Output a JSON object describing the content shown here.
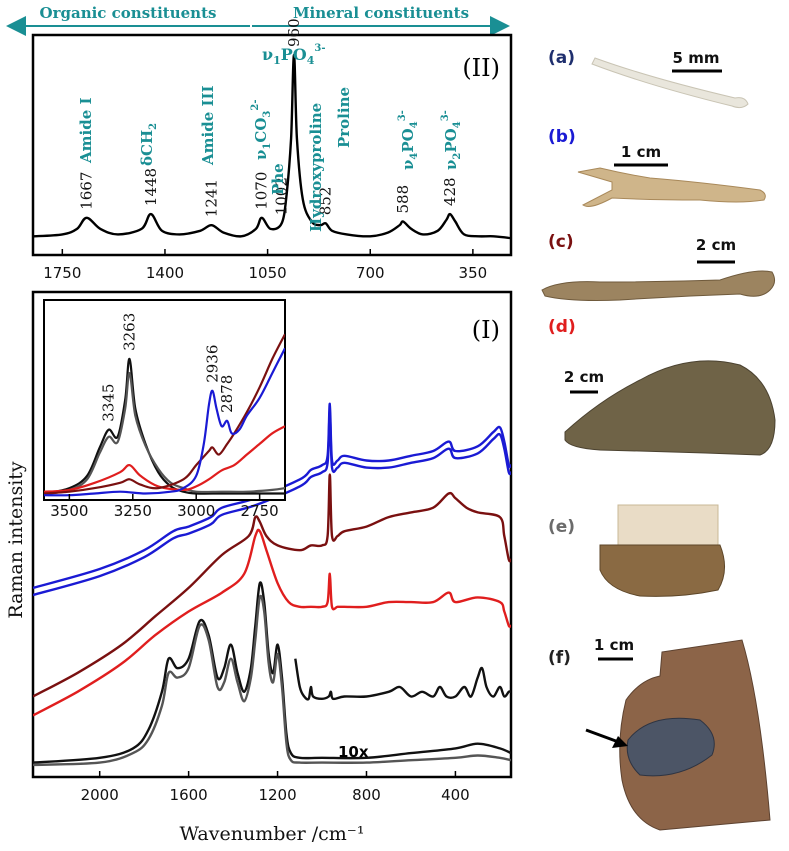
{
  "header": {
    "organic_label": "Organic constituents",
    "mineral_label": "Mineral constituents",
    "arrow_color": "#1a8f94"
  },
  "chart_data": [
    {
      "id": "panel-II",
      "type": "line",
      "panel_label": "(II)",
      "xlim": [
        1850,
        220
      ],
      "x_ticks": [
        1750,
        1400,
        1050,
        700,
        350
      ],
      "peak_labels": [
        {
          "x": 1667,
          "text": "1667"
        },
        {
          "x": 1448,
          "text": "1448"
        },
        {
          "x": 1241,
          "text": "1241"
        },
        {
          "x": 1070,
          "text": "1070"
        },
        {
          "x": 1002,
          "text": "1002"
        },
        {
          "x": 960,
          "text": "960"
        },
        {
          "x": 852,
          "text": "852"
        },
        {
          "x": 588,
          "text": "588"
        },
        {
          "x": 428,
          "text": "428"
        }
      ],
      "assignments": [
        "Amide I",
        "δCH2",
        "Amide III",
        "ν1CO3 2-",
        "Phe",
        "ν1PO4 3-",
        "Hydroxyproline",
        "Proline",
        "ν4PO4 3-",
        "ν2PO4 3-"
      ],
      "series": [
        {
          "color": "#000000",
          "x": [
            1850,
            1750,
            1700,
            1667,
            1620,
            1560,
            1480,
            1448,
            1410,
            1350,
            1280,
            1241,
            1200,
            1140,
            1090,
            1070,
            1040,
            1002,
            985,
            970,
            960,
            950,
            930,
            900,
            870,
            852,
            830,
            780,
            700,
            640,
            600,
            588,
            560,
            520,
            470,
            440,
            428,
            410,
            380,
            330,
            280,
            220
          ],
          "y": [
            0.02,
            0.03,
            0.06,
            0.12,
            0.06,
            0.03,
            0.06,
            0.14,
            0.05,
            0.03,
            0.05,
            0.08,
            0.04,
            0.02,
            0.06,
            0.12,
            0.06,
            0.09,
            0.25,
            0.55,
            1.0,
            0.55,
            0.22,
            0.1,
            0.08,
            0.09,
            0.05,
            0.03,
            0.02,
            0.04,
            0.08,
            0.1,
            0.06,
            0.03,
            0.05,
            0.11,
            0.14,
            0.1,
            0.03,
            0.02,
            0.02,
            0.01
          ]
        }
      ]
    },
    {
      "id": "panel-I",
      "type": "line",
      "panel_label": "(I)",
      "xlabel": "Wavenumber /cm⁻¹",
      "ylabel": "Raman intensity",
      "xlim": [
        2300,
        150
      ],
      "x_ticks": [
        2000,
        1600,
        1200,
        800,
        400
      ],
      "annotation": "10x",
      "series": [
        {
          "color": "#1a1ad4",
          "x": [
            2300,
            2000,
            1800,
            1670,
            1600,
            1500,
            1450,
            1300,
            1100,
            1050,
            1000,
            975,
            965,
            955,
            930,
            900,
            800,
            700,
            600,
            500,
            430,
            400,
            300,
            230,
            200,
            180,
            160,
            150
          ],
          "y": [
            0.39,
            0.43,
            0.47,
            0.51,
            0.52,
            0.54,
            0.56,
            0.58,
            0.62,
            0.64,
            0.65,
            0.67,
            0.78,
            0.66,
            0.66,
            0.67,
            0.66,
            0.66,
            0.67,
            0.68,
            0.7,
            0.68,
            0.69,
            0.72,
            0.73,
            0.7,
            0.65,
            0.65
          ]
        },
        {
          "color": "#1a1ad4",
          "x": [
            2300,
            2000,
            1800,
            1670,
            1600,
            1500,
            1450,
            1300,
            1100,
            1050,
            1000,
            975,
            965,
            955,
            930,
            900,
            800,
            700,
            600,
            500,
            430,
            400,
            300,
            230,
            200,
            180,
            160,
            150
          ],
          "y": [
            0.375,
            0.415,
            0.455,
            0.495,
            0.505,
            0.525,
            0.545,
            0.565,
            0.605,
            0.625,
            0.635,
            0.655,
            0.765,
            0.645,
            0.645,
            0.655,
            0.645,
            0.645,
            0.655,
            0.665,
            0.685,
            0.665,
            0.675,
            0.705,
            0.715,
            0.685,
            0.635,
            0.635
          ]
        },
        {
          "color": "#7a1010",
          "x": [
            2300,
            2100,
            1900,
            1750,
            1600,
            1450,
            1330,
            1300,
            1280,
            1250,
            1200,
            1100,
            1050,
            1000,
            975,
            965,
            955,
            930,
            900,
            800,
            700,
            600,
            500,
            430,
            400,
            350,
            300,
            200,
            180,
            160,
            150
          ],
          "y": [
            0.16,
            0.21,
            0.27,
            0.33,
            0.39,
            0.46,
            0.5,
            0.54,
            0.53,
            0.5,
            0.48,
            0.47,
            0.48,
            0.48,
            0.5,
            0.63,
            0.5,
            0.5,
            0.51,
            0.52,
            0.54,
            0.55,
            0.56,
            0.59,
            0.58,
            0.56,
            0.55,
            0.54,
            0.5,
            0.45,
            0.45
          ]
        },
        {
          "color": "#e01e1e",
          "x": [
            2300,
            2100,
            1900,
            1750,
            1600,
            1450,
            1350,
            1300,
            1280,
            1250,
            1200,
            1150,
            1100,
            1050,
            1000,
            975,
            965,
            955,
            930,
            900,
            800,
            700,
            600,
            500,
            430,
            400,
            300,
            200,
            180,
            160,
            150
          ],
          "y": [
            0.12,
            0.17,
            0.23,
            0.29,
            0.34,
            0.38,
            0.42,
            0.5,
            0.51,
            0.47,
            0.4,
            0.36,
            0.35,
            0.35,
            0.35,
            0.36,
            0.42,
            0.35,
            0.35,
            0.35,
            0.35,
            0.36,
            0.36,
            0.36,
            0.38,
            0.36,
            0.37,
            0.36,
            0.34,
            0.31,
            0.31
          ]
        },
        {
          "color": "#111111",
          "x": [
            2300,
            2000,
            1850,
            1780,
            1720,
            1690,
            1650,
            1600,
            1550,
            1510,
            1470,
            1440,
            1410,
            1380,
            1350,
            1320,
            1300,
            1280,
            1260,
            1240,
            1220,
            1200,
            1180,
            1160,
            1140,
            1100,
            1000,
            800,
            600,
            400,
            300,
            200,
            150
          ],
          "y": [
            0.02,
            0.03,
            0.05,
            0.09,
            0.17,
            0.24,
            0.22,
            0.24,
            0.32,
            0.29,
            0.2,
            0.22,
            0.27,
            0.21,
            0.17,
            0.22,
            0.31,
            0.4,
            0.36,
            0.25,
            0.21,
            0.27,
            0.2,
            0.08,
            0.04,
            0.03,
            0.03,
            0.03,
            0.04,
            0.05,
            0.06,
            0.05,
            0.04
          ]
        },
        {
          "color": "#555555",
          "x": [
            2300,
            2000,
            1850,
            1780,
            1720,
            1690,
            1650,
            1600,
            1550,
            1510,
            1470,
            1440,
            1410,
            1380,
            1350,
            1320,
            1300,
            1280,
            1260,
            1240,
            1220,
            1200,
            1180,
            1160,
            1140,
            1100,
            1000,
            800,
            600,
            400,
            300,
            200,
            150
          ],
          "y": [
            0.015,
            0.02,
            0.04,
            0.07,
            0.14,
            0.21,
            0.2,
            0.22,
            0.31,
            0.28,
            0.18,
            0.19,
            0.24,
            0.19,
            0.15,
            0.2,
            0.28,
            0.37,
            0.34,
            0.23,
            0.19,
            0.25,
            0.18,
            0.06,
            0.025,
            0.02,
            0.02,
            0.02,
            0.025,
            0.03,
            0.035,
            0.03,
            0.025
          ]
        },
        {
          "color": "#111111",
          "x": [
            1120,
            1100,
            1080,
            1060,
            1050,
            1040,
            1000,
            970,
            960,
            950,
            900,
            800,
            700,
            650,
            600,
            550,
            500,
            470,
            440,
            400,
            360,
            330,
            300,
            280,
            260,
            230,
            200,
            180,
            160,
            150
          ],
          "y": [
            0.24,
            0.18,
            0.16,
            0.155,
            0.18,
            0.16,
            0.155,
            0.16,
            0.17,
            0.155,
            0.16,
            0.16,
            0.17,
            0.18,
            0.16,
            0.17,
            0.16,
            0.18,
            0.16,
            0.16,
            0.18,
            0.16,
            0.2,
            0.22,
            0.18,
            0.16,
            0.18,
            0.16,
            0.17,
            0.17
          ]
        }
      ]
    },
    {
      "id": "inset",
      "type": "line",
      "xlim": [
        3600,
        2650
      ],
      "x_ticks": [
        3500,
        3250,
        3000,
        2750
      ],
      "peak_labels": [
        {
          "x": 3345,
          "text": "3345"
        },
        {
          "x": 3263,
          "text": "3263"
        },
        {
          "x": 2936,
          "text": "2936"
        },
        {
          "x": 2878,
          "text": "2878"
        }
      ],
      "series": [
        {
          "color": "#111111",
          "x": [
            3600,
            3500,
            3430,
            3380,
            3345,
            3310,
            3280,
            3263,
            3240,
            3200,
            3150,
            3100,
            3050,
            3000,
            2900,
            2800,
            2700,
            2650
          ],
          "y": [
            0.02,
            0.05,
            0.12,
            0.28,
            0.38,
            0.34,
            0.55,
            0.78,
            0.5,
            0.3,
            0.14,
            0.06,
            0.03,
            0.02,
            0.02,
            0.02,
            0.02,
            0.02
          ]
        },
        {
          "color": "#555555",
          "x": [
            3600,
            3500,
            3430,
            3380,
            3345,
            3310,
            3280,
            3263,
            3240,
            3200,
            3150,
            3100,
            3050,
            3000,
            2900,
            2800,
            2700,
            2650
          ],
          "y": [
            0.015,
            0.04,
            0.1,
            0.25,
            0.34,
            0.31,
            0.5,
            0.7,
            0.46,
            0.29,
            0.16,
            0.08,
            0.05,
            0.03,
            0.03,
            0.03,
            0.04,
            0.05
          ]
        },
        {
          "color": "#e01e1e",
          "x": [
            3600,
            3500,
            3400,
            3300,
            3263,
            3220,
            3150,
            3050,
            3000,
            2950,
            2900,
            2850,
            2800,
            2750,
            2700,
            2650
          ],
          "y": [
            0.03,
            0.04,
            0.08,
            0.14,
            0.18,
            0.12,
            0.06,
            0.04,
            0.06,
            0.1,
            0.15,
            0.18,
            0.24,
            0.3,
            0.36,
            0.4
          ]
        },
        {
          "color": "#7a1010",
          "x": [
            3600,
            3500,
            3400,
            3300,
            3263,
            3220,
            3150,
            3050,
            3000,
            2950,
            2936,
            2910,
            2878,
            2850,
            2800,
            2750,
            2700,
            2650
          ],
          "y": [
            0.02,
            0.03,
            0.05,
            0.08,
            0.1,
            0.07,
            0.05,
            0.1,
            0.18,
            0.26,
            0.28,
            0.24,
            0.3,
            0.36,
            0.48,
            0.62,
            0.78,
            0.92
          ]
        },
        {
          "color": "#1a1ad4",
          "x": [
            3600,
            3500,
            3400,
            3300,
            3200,
            3100,
            3050,
            3000,
            2970,
            2950,
            2936,
            2920,
            2900,
            2878,
            2860,
            2830,
            2800,
            2750,
            2700,
            2650
          ],
          "y": [
            0.01,
            0.01,
            0.02,
            0.03,
            0.02,
            0.03,
            0.05,
            0.12,
            0.3,
            0.52,
            0.6,
            0.5,
            0.4,
            0.43,
            0.36,
            0.38,
            0.46,
            0.56,
            0.7,
            0.84
          ]
        }
      ]
    }
  ],
  "photos": {
    "labels": [
      "(a)",
      "(b)",
      "(c)",
      "(d)",
      "(e)",
      "(f)"
    ],
    "label_colors": [
      "#1f2f6e",
      "#1a1ad4",
      "#7a1010",
      "#e01e1e",
      "#6b6b6b",
      "#222222"
    ],
    "scales": [
      "5 mm",
      "1 cm",
      "2 cm",
      "2 cm",
      "",
      "1 cm"
    ]
  }
}
